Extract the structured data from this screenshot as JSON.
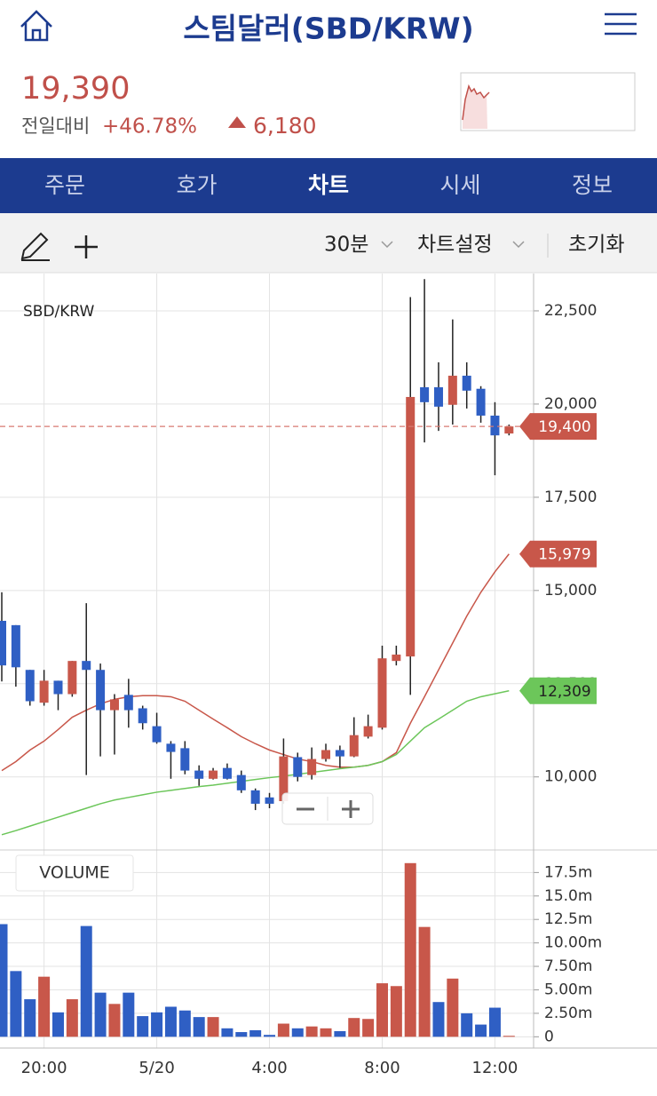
{
  "header": {
    "title": "스팀달러(SBD/KRW)"
  },
  "price": {
    "current": "19,390",
    "change_label": "전일대비",
    "change_pct": "+46.78%",
    "change_abs": "6,180"
  },
  "tabs": [
    "주문",
    "호가",
    "차트",
    "시세",
    "정보"
  ],
  "toolbar": {
    "interval": "30분",
    "settings": "차트설정",
    "reset": "초기화"
  },
  "chart_data": [
    {
      "type": "candlestick",
      "title": "SBD/KRW",
      "up_color": "#c8574a",
      "down_color": "#2f5fc4",
      "open": [
        14186,
        14070,
        12870,
        11990,
        12580,
        12220,
        13110,
        12870,
        11790,
        12200,
        11840,
        11360,
        10890,
        10770,
        10170,
        9950,
        10240,
        10050,
        9640,
        9450,
        9350,
        10530,
        10050,
        10480,
        10720,
        10550,
        11080,
        11320,
        13110,
        13230,
        20450,
        20450,
        19980,
        20760,
        20410,
        19690,
        19210
      ],
      "high": [
        14952,
        14070,
        12870,
        12870,
        12580,
        13110,
        14660,
        13040,
        12220,
        12630,
        11910,
        11720,
        10960,
        10960,
        10310,
        10240,
        10360,
        10170,
        9690,
        9570,
        11030,
        10650,
        10790,
        10890,
        10840,
        11600,
        11670,
        13520,
        13520,
        22870,
        23350,
        21120,
        22270,
        21120,
        20480,
        20050,
        19450
      ],
      "low": [
        12560,
        12420,
        11910,
        11910,
        11790,
        12150,
        10050,
        10550,
        10600,
        11320,
        11270,
        10890,
        9950,
        10070,
        9760,
        9930,
        9930,
        9570,
        9110,
        9160,
        9280,
        9880,
        9930,
        10410,
        10240,
        10530,
        11030,
        11270,
        12990,
        12200,
        18970,
        19280,
        19450,
        19880,
        19500,
        18090,
        19160
      ],
      "close": [
        12990,
        12940,
        12030,
        12580,
        12220,
        13110,
        12870,
        11790,
        12080,
        11790,
        11440,
        10930,
        10670,
        10170,
        9950,
        10170,
        9950,
        9640,
        9280,
        9280,
        10550,
        10000,
        10480,
        10720,
        10550,
        11120,
        11360,
        13180,
        13280,
        20190,
        20050,
        19930,
        20760,
        20360,
        19690,
        19160,
        19400
      ],
      "lines": [
        {
          "color": "#c8574a",
          "values": [
            10170,
            10410,
            10720,
            10960,
            11270,
            11600,
            11790,
            11960,
            12080,
            12150,
            12180,
            12180,
            12150,
            12030,
            11790,
            11550,
            11320,
            11080,
            10890,
            10720,
            10600,
            10480,
            10410,
            10310,
            10260,
            10260,
            10310,
            10410,
            10650,
            11440,
            12150,
            12870,
            13590,
            14310,
            14950,
            15500,
            15979
          ],
          "value_labels": [
            null,
            null,
            null,
            null,
            null,
            null,
            null,
            null,
            null,
            null,
            null,
            null,
            null,
            null,
            null,
            null,
            null,
            null,
            null,
            null,
            null,
            null,
            null,
            null,
            null,
            null,
            null,
            null,
            null,
            null,
            null,
            null,
            null,
            null,
            null,
            null,
            "15,979"
          ]
        },
        {
          "color": "#6cc65a",
          "values": [
            8450,
            8560,
            8680,
            8800,
            8920,
            9040,
            9160,
            9280,
            9380,
            9450,
            9520,
            9590,
            9640,
            9690,
            9740,
            9780,
            9830,
            9880,
            9930,
            9980,
            10020,
            10070,
            10120,
            10170,
            10220,
            10260,
            10310,
            10410,
            10600,
            10960,
            11320,
            11550,
            11790,
            12030,
            12150,
            12230,
            12309
          ],
          "value_labels": [
            null,
            null,
            null,
            null,
            null,
            null,
            null,
            null,
            null,
            null,
            null,
            null,
            null,
            null,
            null,
            null,
            null,
            null,
            null,
            null,
            null,
            null,
            null,
            null,
            null,
            null,
            null,
            null,
            null,
            null,
            null,
            null,
            null,
            null,
            null,
            null,
            "12,309"
          ]
        }
      ],
      "current_price": 19400,
      "current_price_label": "19,400",
      "ylim": [
        8040,
        23500
      ],
      "yticks": [
        {
          "value": 10000,
          "label": "10,000"
        },
        {
          "value": 12500,
          "label": "12,500"
        },
        {
          "value": 15000,
          "label": "15,000"
        },
        {
          "value": 17500,
          "label": "17,500"
        },
        {
          "value": 20000,
          "label": "20,000"
        },
        {
          "value": 22500,
          "label": "22,500"
        }
      ],
      "grid": true
    },
    {
      "type": "bar",
      "title": "VOLUME",
      "categories": [
        null,
        null,
        null,
        "20:00",
        null,
        null,
        null,
        null,
        null,
        null,
        null,
        "5/20",
        null,
        null,
        null,
        null,
        null,
        null,
        null,
        "4:00",
        null,
        null,
        null,
        null,
        null,
        null,
        null,
        "8:00",
        null,
        null,
        null,
        null,
        null,
        null,
        null,
        "12:00",
        null
      ],
      "values": [
        12,
        7,
        4,
        6.4,
        2.6,
        4,
        11.8,
        4.7,
        3.5,
        4.7,
        2.2,
        2.6,
        3.2,
        2.8,
        2.1,
        2.1,
        0.9,
        0.5,
        0.7,
        0.2,
        1.4,
        0.9,
        1.1,
        0.9,
        0.6,
        2,
        1.9,
        5.7,
        5.4,
        18.5,
        11.7,
        3.7,
        6.2,
        2.5,
        1.3,
        3.1,
        0.1
      ],
      "colors": [
        "#2f5fc4",
        "#2f5fc4",
        "#2f5fc4",
        "#c8574a",
        "#2f5fc4",
        "#c8574a",
        "#2f5fc4",
        "#2f5fc4",
        "#c8574a",
        "#2f5fc4",
        "#2f5fc4",
        "#2f5fc4",
        "#2f5fc4",
        "#2f5fc4",
        "#2f5fc4",
        "#c8574a",
        "#2f5fc4",
        "#2f5fc4",
        "#2f5fc4",
        "#2f5fc4",
        "#c8574a",
        "#2f5fc4",
        "#c8574a",
        "#c8574a",
        "#2f5fc4",
        "#c8574a",
        "#c8574a",
        "#c8574a",
        "#c8574a",
        "#c8574a",
        "#c8574a",
        "#2f5fc4",
        "#c8574a",
        "#2f5fc4",
        "#2f5fc4",
        "#2f5fc4",
        "#c8574a"
      ],
      "ylim": [
        -1.2,
        19.9
      ],
      "yticks": [
        0,
        {
          "value": 2.5,
          "label": "2.50m"
        },
        {
          "value": 5,
          "label": "5.00m"
        },
        {
          "value": 7.5,
          "label": "7.50m"
        },
        {
          "value": 10,
          "label": "10.00m"
        },
        {
          "value": 12.5,
          "label": "12.5m"
        },
        {
          "value": 15,
          "label": "15.0m"
        },
        {
          "value": 17.5,
          "label": "17.5m"
        }
      ],
      "grid": true
    }
  ]
}
